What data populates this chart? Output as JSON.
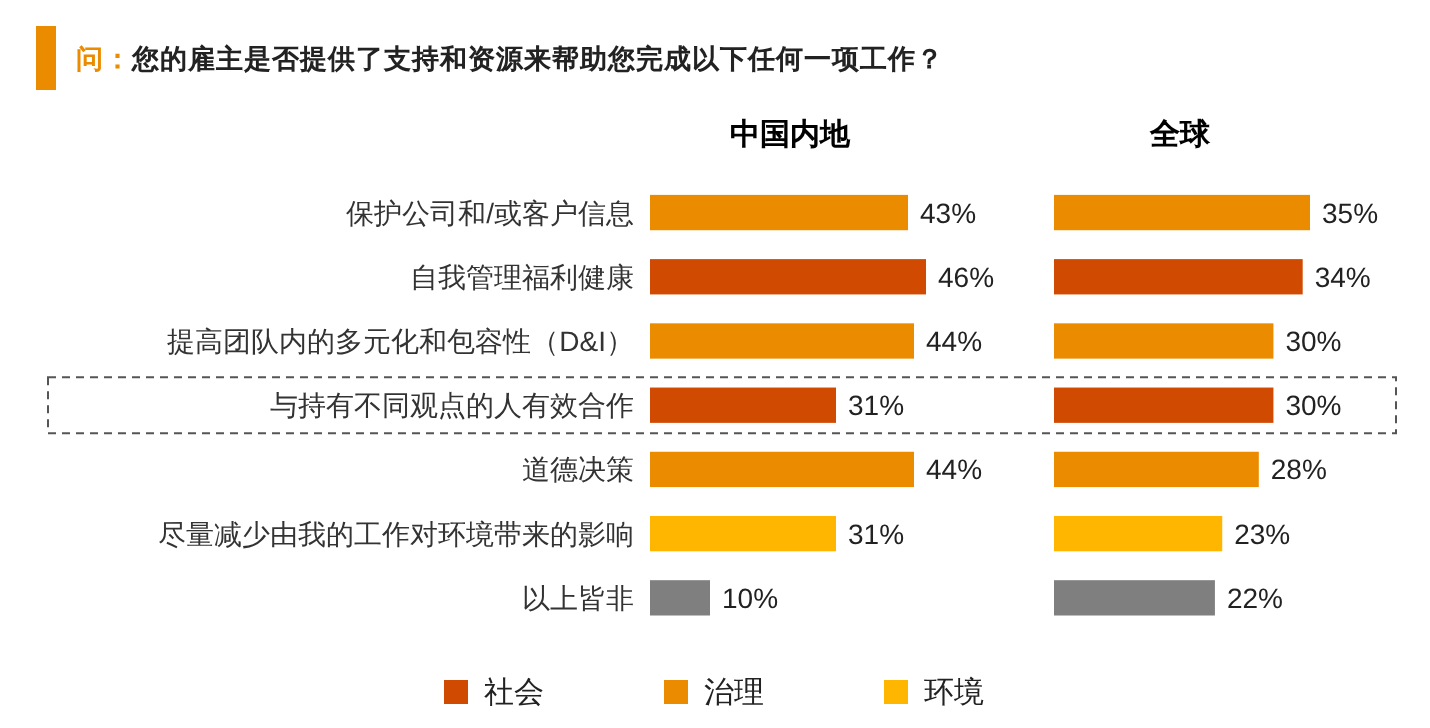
{
  "chart_data": [
    {
      "type": "bar",
      "orientation": "horizontal",
      "title": "问：您的雇主是否提供了支持和资源来帮助您完成以下任何一项工作？",
      "subtitle": "中国内地",
      "categories": [
        "保护公司和/或客户信息",
        "自我管理福利健康",
        "提高团队内的多元化和包容性（D&I）",
        "与持有不同观点的人有效合作",
        "道德决策",
        "尽量减少由我的工作对环境带来的影响",
        "以上皆非"
      ],
      "legend": "bottom",
      "series": [
        {
          "name": "社会",
          "color": "#d04a02",
          "values": [
            null,
            46,
            null,
            31,
            null,
            null,
            null
          ],
          "value_labels": [
            null,
            "46%",
            null,
            "31%",
            null,
            null,
            null
          ]
        },
        {
          "name": "治理",
          "color": "#eb8c00",
          "values": [
            43,
            null,
            44,
            null,
            44,
            null,
            null
          ],
          "value_labels": [
            "43%",
            null,
            "44%",
            null,
            "44%",
            null,
            null
          ]
        },
        {
          "name": "环境",
          "color": "#ffb600",
          "values": [
            null,
            null,
            null,
            null,
            null,
            31,
            null
          ],
          "value_labels": [
            null,
            null,
            null,
            null,
            null,
            "31%",
            null
          ]
        },
        {
          "color": "#7f7f7f",
          "values": [
            null,
            null,
            null,
            null,
            null,
            null,
            10
          ],
          "value_labels": [
            null,
            null,
            null,
            null,
            null,
            null,
            "10%"
          ]
        }
      ]
    },
    {
      "type": "bar",
      "orientation": "horizontal",
      "title": "全球",
      "categories": [
        null,
        null,
        null,
        null,
        null,
        null,
        null
      ],
      "series": [
        {
          "color": "#d04a02",
          "values": [
            null,
            34,
            null,
            30,
            null,
            null,
            null
          ],
          "value_labels": [
            null,
            "34%",
            null,
            "30%",
            null,
            null,
            null
          ]
        },
        {
          "color": "#eb8c00",
          "values": [
            35,
            null,
            30,
            null,
            28,
            null,
            null
          ],
          "value_labels": [
            "35%",
            null,
            "30%",
            null,
            "28%",
            null,
            null
          ]
        },
        {
          "color": "#ffb600",
          "values": [
            null,
            null,
            null,
            null,
            null,
            23,
            null
          ],
          "value_labels": [
            null,
            null,
            null,
            null,
            null,
            "23%",
            null
          ]
        },
        {
          "color": "#7f7f7f",
          "values": [
            null,
            null,
            null,
            null,
            null,
            null,
            22
          ],
          "value_labels": [
            null,
            null,
            null,
            null,
            null,
            null,
            "22%"
          ]
        }
      ]
    }
  ]
}
